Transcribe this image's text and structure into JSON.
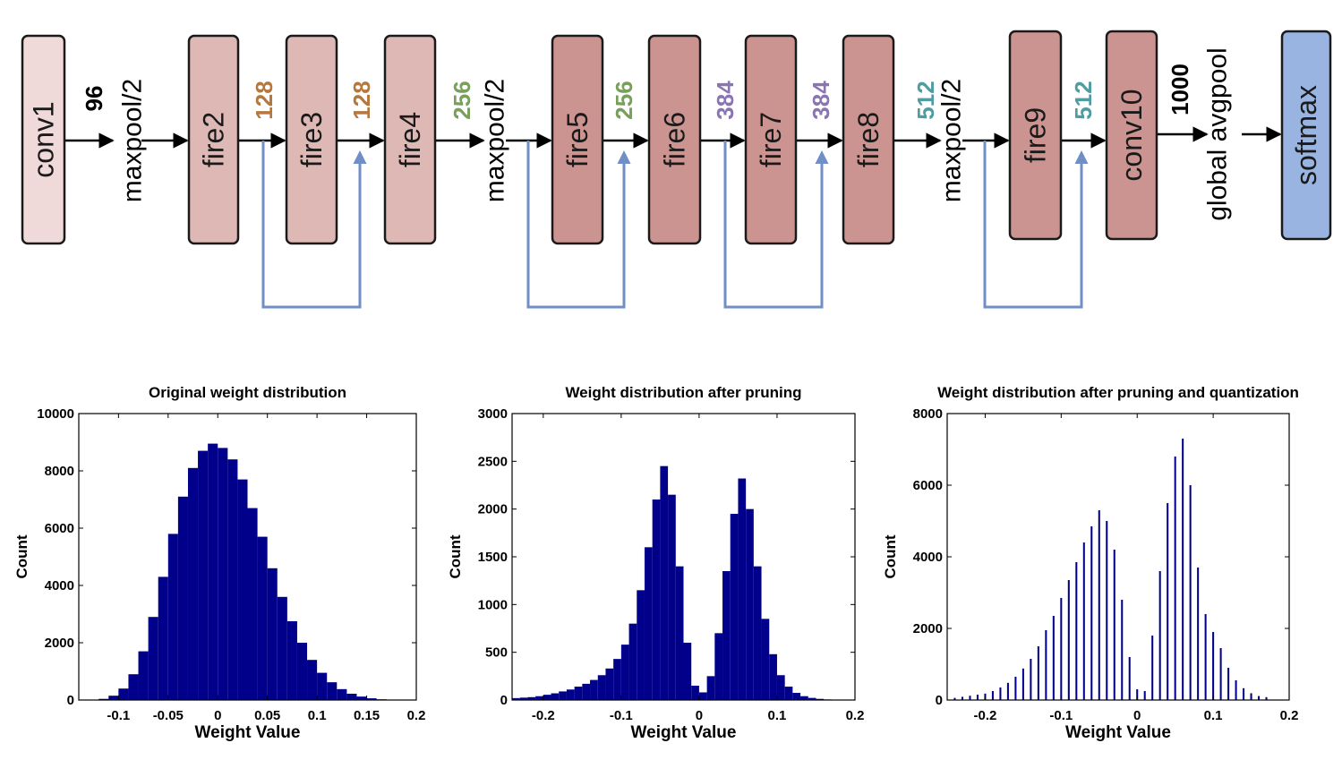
{
  "diagram": {
    "nodes": [
      {
        "id": "conv1",
        "label": "conv1",
        "kind": "conv-light"
      },
      {
        "id": "maxpool1",
        "label": "maxpool/2",
        "kind": "op"
      },
      {
        "id": "fire2",
        "label": "fire2",
        "kind": "fire-light"
      },
      {
        "id": "fire3",
        "label": "fire3",
        "kind": "fire-light"
      },
      {
        "id": "fire4",
        "label": "fire4",
        "kind": "fire-light"
      },
      {
        "id": "maxpool2",
        "label": "maxpool/2",
        "kind": "op"
      },
      {
        "id": "fire5",
        "label": "fire5",
        "kind": "fire-dark"
      },
      {
        "id": "fire6",
        "label": "fire6",
        "kind": "fire-dark"
      },
      {
        "id": "fire7",
        "label": "fire7",
        "kind": "fire-dark"
      },
      {
        "id": "fire8",
        "label": "fire8",
        "kind": "fire-dark"
      },
      {
        "id": "maxpool3",
        "label": "maxpool/2",
        "kind": "op"
      },
      {
        "id": "fire9",
        "label": "fire9",
        "kind": "fire-dark"
      },
      {
        "id": "conv10",
        "label": "conv10",
        "kind": "fire-dark"
      },
      {
        "id": "gap",
        "label": "global avgpool",
        "kind": "op"
      },
      {
        "id": "softmax",
        "label": "softmax",
        "kind": "softmax"
      }
    ],
    "channel_labels": [
      {
        "text": "96",
        "color": "#000000"
      },
      {
        "text": "128",
        "color": "#b5773d"
      },
      {
        "text": "128",
        "color": "#b5773d"
      },
      {
        "text": "256",
        "color": "#78a05a"
      },
      {
        "text": "256",
        "color": "#78a05a"
      },
      {
        "text": "384",
        "color": "#8a74b2"
      },
      {
        "text": "384",
        "color": "#8a74b2"
      },
      {
        "text": "512",
        "color": "#4f9da0"
      },
      {
        "text": "512",
        "color": "#4f9da0"
      },
      {
        "text": "1000",
        "color": "#000000"
      }
    ],
    "edges": [
      {
        "from": "conv1",
        "to": "maxpool1"
      },
      {
        "from": "maxpool1",
        "to": "fire2"
      },
      {
        "from": "fire2",
        "to": "fire3"
      },
      {
        "from": "fire3",
        "to": "fire4"
      },
      {
        "from": "fire4",
        "to": "maxpool2"
      },
      {
        "from": "maxpool2",
        "to": "fire5"
      },
      {
        "from": "fire5",
        "to": "fire6"
      },
      {
        "from": "fire6",
        "to": "fire7"
      },
      {
        "from": "fire7",
        "to": "fire8"
      },
      {
        "from": "fire8",
        "to": "maxpool3"
      },
      {
        "from": "maxpool3",
        "to": "fire9"
      },
      {
        "from": "fire9",
        "to": "conv10"
      },
      {
        "from": "conv10",
        "to": "gap"
      },
      {
        "from": "gap",
        "to": "softmax"
      }
    ],
    "bypass": [
      {
        "from": "fire2",
        "to": "fire4",
        "skips": "fire3"
      },
      {
        "from": "maxpool2",
        "to": "fire6",
        "skips": "fire5"
      },
      {
        "from": "fire6",
        "to": "fire8",
        "skips": "fire7"
      },
      {
        "from": "maxpool3",
        "to": "conv10",
        "skips": "fire9"
      }
    ],
    "colors": {
      "conv-light": "#efd9d9",
      "fire-light": "#ddb8b5",
      "fire-dark": "#cc9491",
      "softmax": "#99b4e0",
      "bypass": "#6f8fc6"
    }
  },
  "chart_data": [
    {
      "type": "bar",
      "title": "Original weight distribution",
      "xlabel": "Weight Value",
      "ylabel": "Count",
      "xlim": [
        -0.14,
        0.2
      ],
      "ylim": [
        0,
        10000
      ],
      "xticks": [
        -0.1,
        -0.05,
        0,
        0.05,
        0.1,
        0.15,
        0.2
      ],
      "xtick_labels": [
        "-0.1",
        "-0.05",
        "0",
        "0.05",
        "0.1",
        "0.15",
        "0.2"
      ],
      "yticks": [
        0,
        2000,
        4000,
        6000,
        8000,
        10000
      ],
      "ytick_labels": [
        "0",
        "2000",
        "4000",
        "6000",
        "8000",
        "10000"
      ],
      "x": [
        -0.125,
        -0.115,
        -0.105,
        -0.095,
        -0.085,
        -0.075,
        -0.065,
        -0.055,
        -0.045,
        -0.035,
        -0.025,
        -0.015,
        -0.005,
        0.005,
        0.015,
        0.025,
        0.035,
        0.045,
        0.055,
        0.065,
        0.075,
        0.085,
        0.095,
        0.105,
        0.115,
        0.125,
        0.135,
        0.145,
        0.155,
        0.165,
        0.175
      ],
      "values": [
        10,
        40,
        150,
        400,
        900,
        1700,
        2900,
        4300,
        5800,
        7100,
        8100,
        8700,
        8950,
        8800,
        8400,
        7700,
        6700,
        5700,
        4600,
        3600,
        2750,
        2000,
        1400,
        950,
        620,
        380,
        220,
        120,
        60,
        25,
        10
      ]
    },
    {
      "type": "bar",
      "title": "Weight distribution after pruning",
      "xlabel": "Weight Value",
      "ylabel": "Count",
      "xlim": [
        -0.24,
        0.2
      ],
      "ylim": [
        0,
        3000
      ],
      "xticks": [
        -0.2,
        -0.1,
        0,
        0.1,
        0.2
      ],
      "xtick_labels": [
        "-0.2",
        "-0.1",
        "0",
        "0.1",
        "0.2"
      ],
      "yticks": [
        0,
        500,
        1000,
        1500,
        2000,
        2500,
        3000
      ],
      "ytick_labels": [
        "0",
        "500",
        "1000",
        "1500",
        "2000",
        "2500",
        "3000"
      ],
      "x": [
        -0.235,
        -0.225,
        -0.215,
        -0.205,
        -0.195,
        -0.185,
        -0.175,
        -0.165,
        -0.155,
        -0.145,
        -0.135,
        -0.125,
        -0.115,
        -0.105,
        -0.095,
        -0.085,
        -0.075,
        -0.065,
        -0.055,
        -0.045,
        -0.035,
        -0.025,
        -0.015,
        -0.005,
        0.005,
        0.015,
        0.025,
        0.035,
        0.045,
        0.055,
        0.065,
        0.075,
        0.085,
        0.095,
        0.105,
        0.115,
        0.125,
        0.135,
        0.145,
        0.155,
        0.165,
        0.175
      ],
      "values": [
        20,
        25,
        30,
        40,
        55,
        70,
        90,
        110,
        140,
        170,
        210,
        260,
        330,
        430,
        580,
        800,
        1150,
        1600,
        2100,
        2450,
        2150,
        1400,
        600,
        150,
        80,
        250,
        700,
        1350,
        1950,
        2320,
        2000,
        1400,
        850,
        480,
        260,
        140,
        75,
        40,
        22,
        12,
        6,
        3
      ]
    },
    {
      "type": "bar",
      "title": "Weight distribution after pruning and quantization",
      "xlabel": "Weight Value",
      "ylabel": "Count",
      "xlim": [
        -0.25,
        0.2
      ],
      "ylim": [
        0,
        8000
      ],
      "xticks": [
        -0.2,
        -0.1,
        0,
        0.1,
        0.2
      ],
      "xtick_labels": [
        "-0.2",
        "-0.1",
        "0",
        "0.1",
        "0.2"
      ],
      "yticks": [
        0,
        2000,
        4000,
        6000,
        8000
      ],
      "ytick_labels": [
        "0",
        "2000",
        "4000",
        "6000",
        "8000"
      ],
      "x": [
        -0.24,
        -0.23,
        -0.22,
        -0.21,
        -0.2,
        -0.19,
        -0.18,
        -0.17,
        -0.16,
        -0.15,
        -0.14,
        -0.13,
        -0.12,
        -0.11,
        -0.1,
        -0.09,
        -0.08,
        -0.07,
        -0.06,
        -0.05,
        -0.04,
        -0.03,
        -0.02,
        -0.01,
        0,
        0.01,
        0.02,
        0.03,
        0.04,
        0.05,
        0.06,
        0.07,
        0.08,
        0.09,
        0.1,
        0.11,
        0.12,
        0.13,
        0.14,
        0.15,
        0.16,
        0.17
      ],
      "values": [
        60,
        90,
        120,
        150,
        180,
        250,
        350,
        480,
        650,
        880,
        1150,
        1500,
        1950,
        2350,
        2850,
        3350,
        3850,
        4400,
        4850,
        5300,
        5000,
        4200,
        2800,
        1200,
        300,
        250,
        1800,
        3600,
        5500,
        6800,
        7300,
        6000,
        3700,
        2400,
        1900,
        1450,
        900,
        550,
        330,
        190,
        110,
        80
      ]
    }
  ]
}
